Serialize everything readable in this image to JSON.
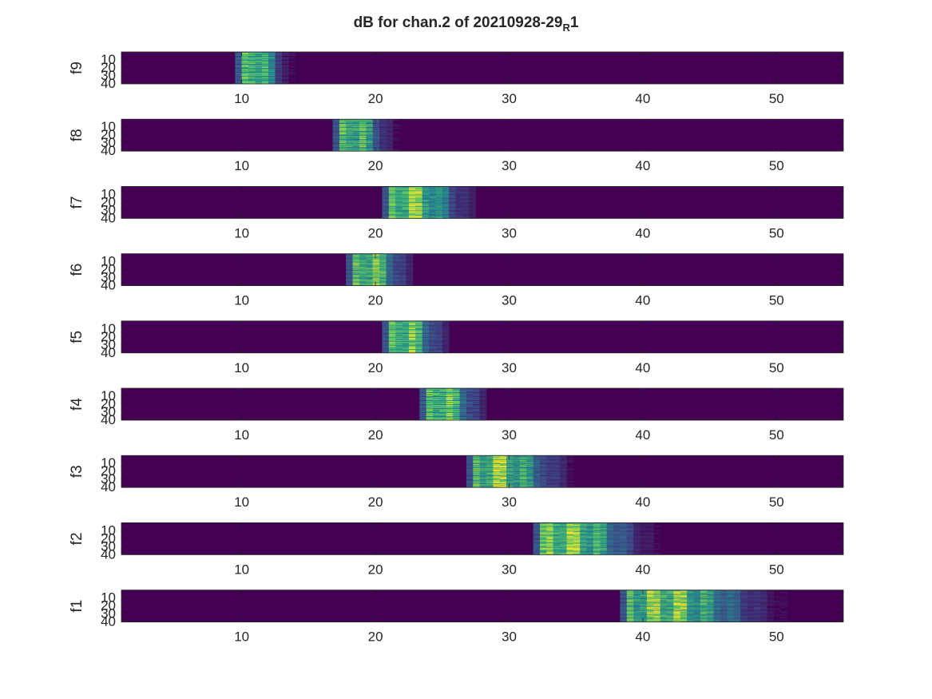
{
  "chart_data": {
    "type": "heatmap",
    "title_main": "dB for chan.2 of 20210928-29",
    "title_sub": "R",
    "title_tail": "1",
    "xlim": [
      1,
      55
    ],
    "xticks": [
      10,
      20,
      30,
      40,
      50
    ],
    "ylim": [
      1,
      41
    ],
    "yticks": [
      10,
      20,
      30,
      40
    ],
    "background_color": "#440154",
    "colormap": "viridis",
    "panels": [
      {
        "label": "f9",
        "onset": 9.5,
        "spread": 4.0
      },
      {
        "label": "f8",
        "onset": 16.8,
        "spread": 4.5
      },
      {
        "label": "f7",
        "onset": 20.5,
        "spread": 7.0
      },
      {
        "label": "f6",
        "onset": 17.8,
        "spread": 5.0
      },
      {
        "label": "f5",
        "onset": 20.5,
        "spread": 5.0
      },
      {
        "label": "f4",
        "onset": 23.3,
        "spread": 5.0
      },
      {
        "label": "f3",
        "onset": 26.8,
        "spread": 8.0
      },
      {
        "label": "f2",
        "onset": 31.8,
        "spread": 9.0
      },
      {
        "label": "f1",
        "onset": 38.3,
        "spread": 12.0
      }
    ]
  }
}
